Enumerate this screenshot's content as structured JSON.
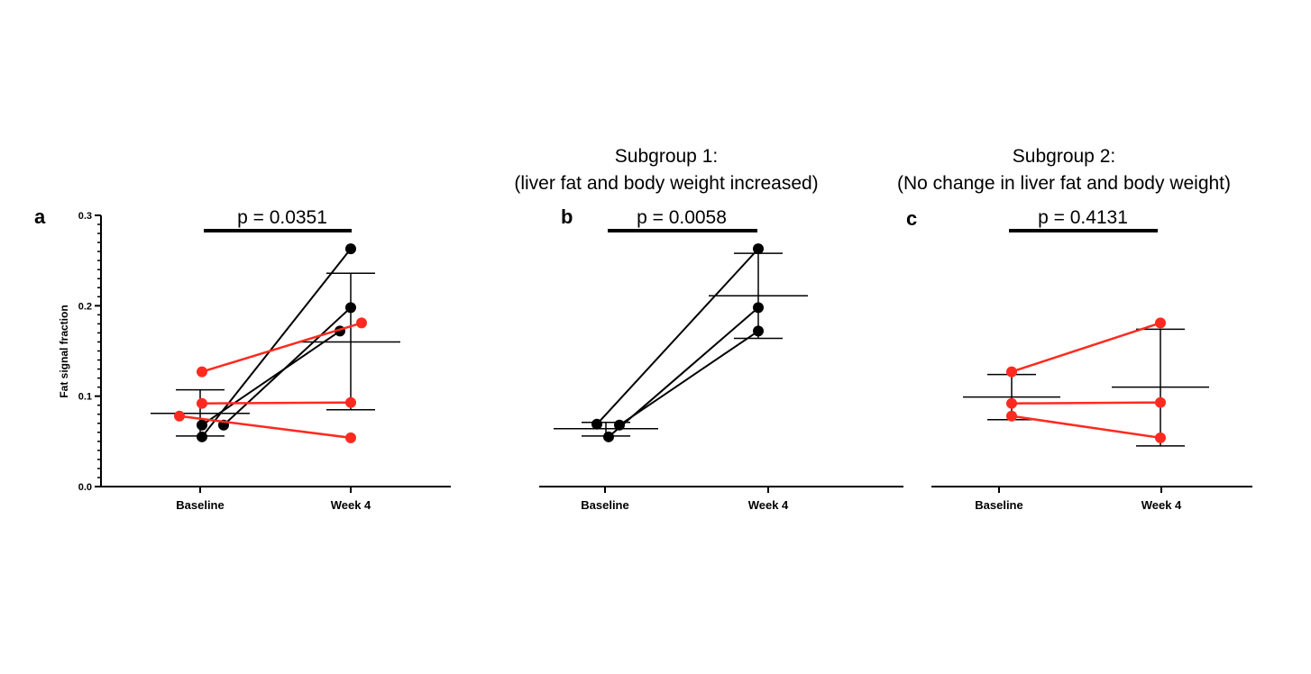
{
  "chart_data": [
    {
      "type": "scatter",
      "panel": "a",
      "title": "",
      "pvalue": "p = 0.0351",
      "ylabel": "Fat signal fraction",
      "xlabel": "",
      "categories": [
        "Baseline",
        "Week 4"
      ],
      "ylim": [
        0,
        0.3
      ],
      "yticks": [
        "0.0",
        "0.1",
        "0.2",
        "0.3"
      ],
      "series": [
        {
          "name": "s1",
          "color": "#000000",
          "values": [
            0.055,
            0.263
          ]
        },
        {
          "name": "s2",
          "color": "#000000",
          "values": [
            0.068,
            0.198
          ]
        },
        {
          "name": "s3",
          "color": "#000000",
          "values": [
            0.068,
            0.172
          ]
        },
        {
          "name": "s4",
          "color": "#ff2a1f",
          "values": [
            0.127,
            0.181
          ]
        },
        {
          "name": "s5",
          "color": "#ff2a1f",
          "values": [
            0.092,
            0.093
          ]
        },
        {
          "name": "s6",
          "color": "#ff2a1f",
          "values": [
            0.078,
            0.054
          ]
        }
      ],
      "summary": [
        {
          "category": "Baseline",
          "mean": 0.081,
          "upper": 0.107,
          "lower": 0.056
        },
        {
          "category": "Week 4",
          "mean": 0.16,
          "upper": 0.236,
          "lower": 0.085
        }
      ]
    },
    {
      "type": "scatter",
      "panel": "b",
      "title": "Subgroup 1:",
      "subtitle": "(liver fat and body weight increased)",
      "pvalue": "p = 0.0058",
      "categories": [
        "Baseline",
        "Week 4"
      ],
      "ylim": [
        0,
        0.3
      ],
      "series": [
        {
          "name": "s1",
          "color": "#000000",
          "values": [
            0.069,
            0.263
          ]
        },
        {
          "name": "s2",
          "color": "#000000",
          "values": [
            0.055,
            0.198
          ]
        },
        {
          "name": "s3",
          "color": "#000000",
          "values": [
            0.068,
            0.172
          ]
        }
      ],
      "summary": [
        {
          "category": "Baseline",
          "mean": 0.064,
          "upper": 0.071,
          "lower": 0.056
        },
        {
          "category": "Week 4",
          "mean": 0.211,
          "upper": 0.258,
          "lower": 0.164
        }
      ]
    },
    {
      "type": "scatter",
      "panel": "c",
      "title": "Subgroup 2:",
      "subtitle": "(No change in liver fat and body weight)",
      "pvalue": "p = 0.4131",
      "categories": [
        "Baseline",
        "Week 4"
      ],
      "ylim": [
        0,
        0.3
      ],
      "series": [
        {
          "name": "s1",
          "color": "#ff2a1f",
          "values": [
            0.127,
            0.181
          ]
        },
        {
          "name": "s2",
          "color": "#ff2a1f",
          "values": [
            0.092,
            0.093
          ]
        },
        {
          "name": "s3",
          "color": "#ff2a1f",
          "values": [
            0.078,
            0.054
          ]
        }
      ],
      "summary": [
        {
          "category": "Baseline",
          "mean": 0.099,
          "upper": 0.124,
          "lower": 0.074
        },
        {
          "category": "Week 4",
          "mean": 0.11,
          "upper": 0.174,
          "lower": 0.045
        }
      ]
    }
  ]
}
